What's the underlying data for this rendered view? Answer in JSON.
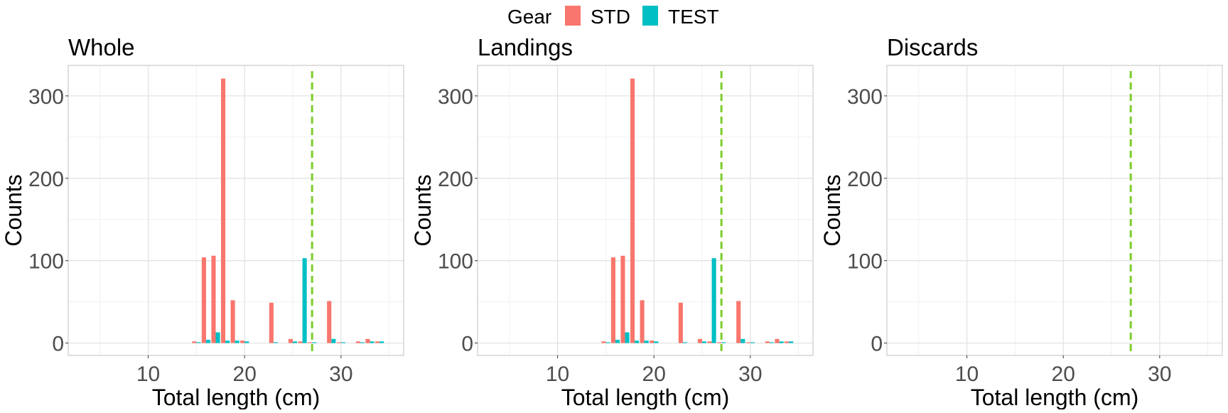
{
  "legend": {
    "title": "Gear",
    "items": [
      {
        "label": "STD",
        "color": "#F8766D"
      },
      {
        "label": "TEST",
        "color": "#00BFC4"
      }
    ]
  },
  "chart_data": [
    {
      "type": "bar",
      "title": "Whole",
      "xlabel": "Total length (cm)",
      "ylabel": "Counts",
      "xlim": [
        1.7,
        36.5
      ],
      "ylim": [
        -15,
        337
      ],
      "xticks": [
        10,
        20,
        30
      ],
      "yticks": [
        0,
        100,
        200,
        300
      ],
      "grid": true,
      "reference_line": {
        "x": 27,
        "color": "#7CCD2B",
        "style": "dashed"
      },
      "series": [
        {
          "name": "STD",
          "color": "#F8766D",
          "x": [
            15,
            16,
            17,
            18,
            19,
            20,
            23,
            25,
            26,
            27,
            29,
            30,
            32,
            33,
            34
          ],
          "values": [
            2,
            104,
            106,
            321,
            52,
            3,
            49,
            5,
            2,
            1,
            51,
            1,
            2,
            5,
            2
          ]
        },
        {
          "name": "TEST",
          "color": "#00BFC4",
          "x": [
            15,
            16,
            17,
            18,
            19,
            20,
            23,
            25,
            26,
            27,
            29,
            30,
            32,
            33,
            34
          ],
          "values": [
            1,
            4,
            13,
            3,
            3,
            2,
            1,
            2,
            103,
            1,
            5,
            1,
            1,
            2,
            2
          ]
        }
      ]
    },
    {
      "type": "bar",
      "title": "Landings",
      "xlabel": "Total length (cm)",
      "ylabel": "Counts",
      "xlim": [
        1.7,
        36.5
      ],
      "ylim": [
        -15,
        337
      ],
      "xticks": [
        10,
        20,
        30
      ],
      "yticks": [
        0,
        100,
        200,
        300
      ],
      "grid": true,
      "reference_line": {
        "x": 27,
        "color": "#7CCD2B",
        "style": "dashed"
      },
      "series": [
        {
          "name": "STD",
          "color": "#F8766D",
          "x": [
            15,
            16,
            17,
            18,
            19,
            20,
            23,
            25,
            26,
            27,
            29,
            30,
            32,
            33,
            34
          ],
          "values": [
            2,
            104,
            106,
            321,
            52,
            3,
            49,
            5,
            2,
            1,
            51,
            1,
            2,
            5,
            2
          ]
        },
        {
          "name": "TEST",
          "color": "#00BFC4",
          "x": [
            15,
            16,
            17,
            18,
            19,
            20,
            23,
            25,
            26,
            27,
            29,
            30,
            32,
            33,
            34
          ],
          "values": [
            1,
            4,
            13,
            3,
            3,
            2,
            1,
            2,
            103,
            1,
            5,
            1,
            1,
            2,
            2
          ]
        }
      ]
    },
    {
      "type": "bar",
      "title": "Discards",
      "xlabel": "Total length (cm)",
      "ylabel": "Counts",
      "xlim": [
        1.7,
        36.5
      ],
      "ylim": [
        -15,
        337
      ],
      "xticks": [
        10,
        20,
        30
      ],
      "yticks": [
        0,
        100,
        200,
        300
      ],
      "grid": true,
      "reference_line": {
        "x": 27,
        "color": "#7CCD2B",
        "style": "dashed"
      },
      "series": []
    }
  ]
}
